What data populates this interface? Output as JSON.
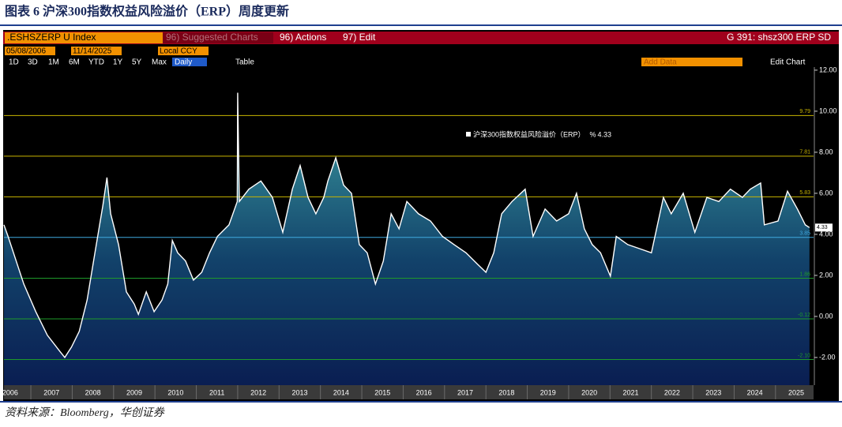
{
  "header": {
    "title": "图表 6 沪深300指数权益风险溢价（ERP）周度更新"
  },
  "toolbar": {
    "security": ".ESHSZERP U Index",
    "suggested": "96) Suggested Charts",
    "actions": "96) Actions",
    "edit": "97) Edit",
    "chart_id": "G 391: shsz300 ERP SD",
    "start_date": "05/08/2006",
    "end_date": "11/14/2025",
    "currency": "Local CCY",
    "periods": [
      "1D",
      "3D",
      "1M",
      "6M",
      "YTD",
      "1Y",
      "5Y",
      "Max"
    ],
    "frequency": "Daily",
    "table": "Table",
    "add_data": "Add Data",
    "edit_chart": "Edit Chart"
  },
  "chart_data": {
    "type": "line",
    "x": [
      2006.35,
      2006.45,
      2006.83,
      2007.12,
      2007.4,
      2007.7,
      2007.82,
      2007.98,
      2008.17,
      2008.36,
      2008.55,
      2008.74,
      2008.84,
      2008.93,
      2009.12,
      2009.31,
      2009.5,
      2009.6,
      2009.79,
      2009.98,
      2010.17,
      2010.31,
      2010.42,
      2010.55,
      2010.74,
      2010.93,
      2011.13,
      2011.32,
      2011.51,
      2011.79,
      2011.99,
      2012.0,
      2012.04,
      2012.27,
      2012.56,
      2012.84,
      2013.09,
      2013.32,
      2013.51,
      2013.7,
      2013.89,
      2014.08,
      2014.18,
      2014.37,
      2014.56,
      2014.75,
      2014.94,
      2015.13,
      2015.33,
      2015.52,
      2015.71,
      2015.9,
      2016.09,
      2016.37,
      2016.66,
      2016.95,
      2017.23,
      2017.52,
      2017.8,
      2018.0,
      2018.19,
      2018.38,
      2018.63,
      2018.95,
      2019.14,
      2019.43,
      2019.71,
      2020.0,
      2020.19,
      2020.38,
      2020.57,
      2020.77,
      2021.01,
      2021.15,
      2021.43,
      2021.72,
      2022.0,
      2022.29,
      2022.48,
      2022.77,
      2023.05,
      2023.34,
      2023.63,
      2023.91,
      2024.2,
      2024.39,
      2024.64,
      2024.73,
      2025.06,
      2025.29,
      2025.53,
      2025.72,
      2025.82
    ],
    "series": [
      {
        "name": "沪深300指数权益风险溢价（ERP）",
        "color": "#ffffff",
        "values": [
          4.46,
          3.9,
          1.58,
          0.23,
          -0.92,
          -1.7,
          -2.0,
          -1.5,
          -0.73,
          0.8,
          3.1,
          5.4,
          6.77,
          5.0,
          3.5,
          1.2,
          0.6,
          0.1,
          1.2,
          0.23,
          0.8,
          1.58,
          3.7,
          3.1,
          2.7,
          1.77,
          2.15,
          3.1,
          3.9,
          4.46,
          5.6,
          10.9,
          5.6,
          6.2,
          6.6,
          5.8,
          4.1,
          6.2,
          7.35,
          5.8,
          5.0,
          5.8,
          6.6,
          7.73,
          6.4,
          6.0,
          3.5,
          3.1,
          1.58,
          2.7,
          5.0,
          4.27,
          5.6,
          5.0,
          4.65,
          3.9,
          3.5,
          3.1,
          2.54,
          2.15,
          3.1,
          5.0,
          5.6,
          6.2,
          3.9,
          5.23,
          4.65,
          5.0,
          6.0,
          4.27,
          3.5,
          3.1,
          1.96,
          3.9,
          3.5,
          3.3,
          3.1,
          5.8,
          5.0,
          6.0,
          4.1,
          5.8,
          5.6,
          6.2,
          5.8,
          6.2,
          6.5,
          4.46,
          4.65,
          6.1,
          5.23,
          4.46,
          4.33
        ]
      }
    ],
    "legend_unit": "%",
    "last_value": 4.33,
    "xlim": [
      2006.35,
      2025.92
    ],
    "xticks": [
      2006,
      2007,
      2008,
      2009,
      2010,
      2011,
      2012,
      2013,
      2014,
      2015,
      2016,
      2017,
      2018,
      2019,
      2020,
      2021,
      2022,
      2023,
      2024,
      2025
    ],
    "ylim": [
      -3.35,
      12.15
    ],
    "yticks": [
      {
        "value": -2,
        "label": "-2.00"
      },
      {
        "value": 0,
        "label": "0.00"
      },
      {
        "value": 2,
        "label": "2.00"
      },
      {
        "value": 4,
        "label": "4.00"
      },
      {
        "value": 6,
        "label": "6.00"
      },
      {
        "value": 8,
        "label": "8.00"
      },
      {
        "value": 10,
        "label": "10.00"
      },
      {
        "value": 12,
        "label": "12.00"
      }
    ],
    "ref_lines": [
      {
        "value": 9.79,
        "color": "#c8b400"
      },
      {
        "value": 7.81,
        "color": "#c8b400"
      },
      {
        "value": 5.83,
        "color": "#c8b400"
      },
      {
        "value": 3.85,
        "color": "#3fa9e0"
      },
      {
        "value": 1.86,
        "color": "#1e9a2a"
      },
      {
        "value": -0.12,
        "color": "#1e9a2a"
      },
      {
        "value": -2.1,
        "label": "-2.10",
        "color": "#1e9a2a"
      }
    ],
    "grid": false
  },
  "source": "资料来源：Bloomberg，华创证券"
}
